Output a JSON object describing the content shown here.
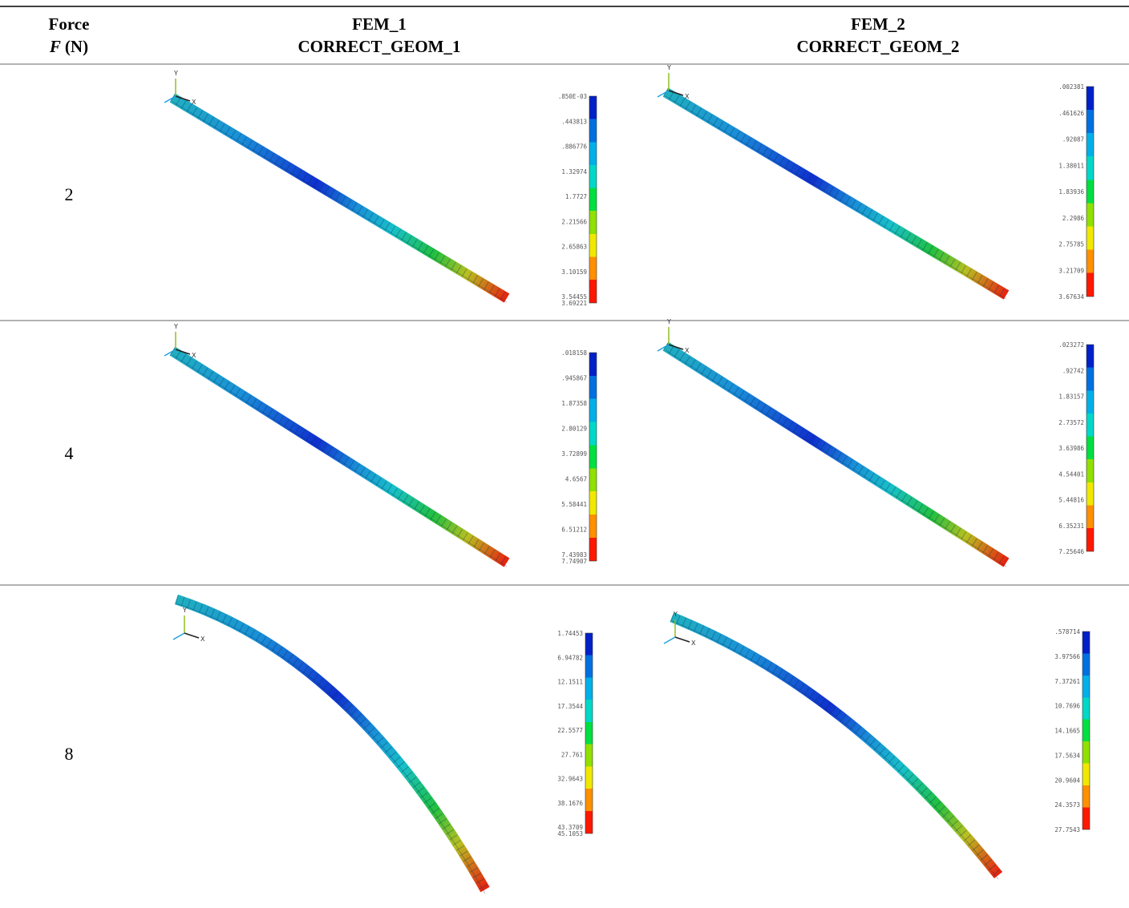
{
  "table": {
    "header": [
      {
        "lines": [
          "Force"
        ],
        "symbol": "F",
        "unit": "(N)"
      },
      {
        "lines": [
          "FEM_1",
          "CORRECT_GEOM_1"
        ]
      },
      {
        "lines": [
          "FEM_2",
          "CORRECT_GEOM_2"
        ]
      }
    ],
    "rows": [
      {
        "force": "2",
        "fem_1": {
          "axes": [
            "Y",
            "X"
          ],
          "legend": [
            ".850E-03",
            ".443813",
            ".886776",
            "1.32974",
            "1.7727",
            "2.21566",
            "2.65863",
            "3.10159",
            "3.54455",
            "3.69221"
          ]
        },
        "fem_2": {
          "axes": [
            "Y",
            "X"
          ],
          "legend": [
            ".002381",
            ".461626",
            ".92087",
            "1.38011",
            "1.83936",
            "2.2986",
            "2.75785",
            "3.21709",
            "3.67634"
          ]
        }
      },
      {
        "force": "4",
        "fem_1": {
          "axes": [
            "Y",
            "X"
          ],
          "legend": [
            ".018158",
            ".945867",
            "1.87358",
            "2.80129",
            "3.72899",
            "4.6567",
            "5.58441",
            "6.51212",
            "7.43983",
            "7.74907"
          ]
        },
        "fem_2": {
          "axes": [
            "Y",
            "X"
          ],
          "legend": [
            ".023272",
            ".92742",
            "1.83157",
            "2.73572",
            "3.63986",
            "4.54401",
            "5.44816",
            "6.35231",
            "7.25646"
          ]
        }
      },
      {
        "force": "8",
        "fem_1": {
          "axes": [
            "Y",
            "X"
          ],
          "legend": [
            "1.74453",
            "6.94782",
            "12.1511",
            "17.3544",
            "22.5577",
            "27.761",
            "32.9643",
            "38.1676",
            "43.3709",
            "45.1053"
          ]
        },
        "fem_2": {
          "axes": [
            "Y",
            "X"
          ],
          "legend": [
            ".578714",
            "3.97566",
            "7.37261",
            "10.7696",
            "14.1665",
            "17.5634",
            "20.9604",
            "24.3573",
            "27.7543"
          ]
        }
      }
    ]
  }
}
